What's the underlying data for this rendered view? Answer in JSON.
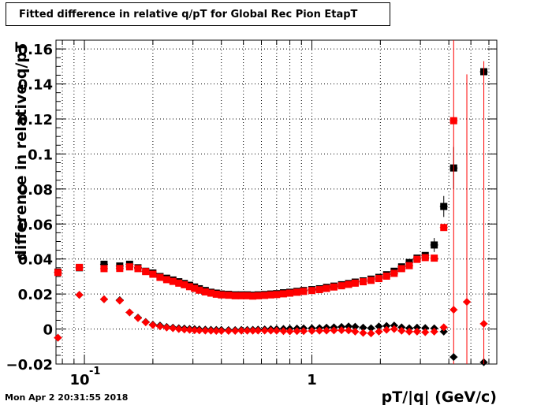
{
  "title": "Fitted difference in relative q/pT for Global Rec Pion EtapT",
  "timestamp": "Mon Apr  2 20:31:55 2018",
  "chart_data": {
    "type": "scatter",
    "title": "Fitted difference in relative q/pT for Global Rec Pion EtapT",
    "xlabel": "pT/|q| (GeV/c)",
    "ylabel": "difference in relative q/pT",
    "xscale": "log",
    "xlim": [
      0.075,
      6.5
    ],
    "ylim": [
      -0.02,
      0.165
    ],
    "grid": true,
    "colors": {
      "black": "#000000",
      "red": "#ff0000"
    },
    "x_tick_labels": [
      {
        "value": 0.1,
        "base": "10",
        "exp": "-1"
      },
      {
        "value": 1,
        "base": "1",
        "exp": ""
      }
    ],
    "y_ticks": [
      -0.02,
      0,
      0.02,
      0.04,
      0.06,
      0.08,
      0.1,
      0.12,
      0.14,
      0.16
    ],
    "y_tick_labels": [
      "−0.02",
      "0",
      "0.02",
      "0.04",
      "0.06",
      "0.08",
      "0.1",
      "0.12",
      "0.14",
      "0.16"
    ],
    "series": [
      {
        "marker": "square",
        "color": "#000000",
        "points": [
          [
            0.0765,
            0.0325
          ],
          [
            0.095,
            0.035
          ],
          [
            0.122,
            0.037
          ],
          [
            0.143,
            0.036
          ],
          [
            0.158,
            0.037
          ],
          [
            0.172,
            0.035
          ],
          [
            0.186,
            0.033
          ],
          [
            0.2,
            0.032
          ],
          [
            0.215,
            0.03
          ],
          [
            0.23,
            0.029
          ],
          [
            0.245,
            0.028
          ],
          [
            0.26,
            0.027
          ],
          [
            0.275,
            0.026
          ],
          [
            0.29,
            0.025
          ],
          [
            0.305,
            0.024
          ],
          [
            0.32,
            0.023
          ],
          [
            0.34,
            0.022
          ],
          [
            0.36,
            0.021
          ],
          [
            0.38,
            0.0205
          ],
          [
            0.4,
            0.02
          ],
          [
            0.43,
            0.0198
          ],
          [
            0.46,
            0.0195
          ],
          [
            0.49,
            0.0195
          ],
          [
            0.52,
            0.0195
          ],
          [
            0.55,
            0.0193
          ],
          [
            0.58,
            0.0195
          ],
          [
            0.62,
            0.0197
          ],
          [
            0.66,
            0.02
          ],
          [
            0.7,
            0.0202
          ],
          [
            0.75,
            0.0207
          ],
          [
            0.8,
            0.021
          ],
          [
            0.86,
            0.0215
          ],
          [
            0.92,
            0.022
          ],
          [
            1.0,
            0.0225
          ],
          [
            1.08,
            0.023
          ],
          [
            1.16,
            0.0238
          ],
          [
            1.25,
            0.0245
          ],
          [
            1.35,
            0.0253
          ],
          [
            1.45,
            0.026
          ],
          [
            1.55,
            0.0268
          ],
          [
            1.68,
            0.0275
          ],
          [
            1.82,
            0.0285
          ],
          [
            1.97,
            0.0295
          ],
          [
            2.13,
            0.031
          ],
          [
            2.3,
            0.033
          ],
          [
            2.48,
            0.0355
          ],
          [
            2.68,
            0.038
          ],
          [
            2.9,
            0.0405
          ],
          [
            3.15,
            0.042
          ],
          [
            3.45,
            0.048
          ],
          [
            3.8,
            0.07
          ],
          [
            4.2,
            0.092
          ],
          [
            5.7,
            0.147
          ]
        ],
        "errors": {
          "3.45": 0.004,
          "3.8": 0.006,
          "4.2": 0.012
        }
      },
      {
        "marker": "square",
        "color": "#ff0000",
        "points": [
          [
            0.0765,
            0.0323
          ],
          [
            0.095,
            0.0352
          ],
          [
            0.122,
            0.0345
          ],
          [
            0.143,
            0.0346
          ],
          [
            0.158,
            0.0355
          ],
          [
            0.172,
            0.0345
          ],
          [
            0.186,
            0.0328
          ],
          [
            0.2,
            0.0313
          ],
          [
            0.215,
            0.0295
          ],
          [
            0.23,
            0.0282
          ],
          [
            0.245,
            0.0272
          ],
          [
            0.26,
            0.0262
          ],
          [
            0.275,
            0.0253
          ],
          [
            0.29,
            0.0242
          ],
          [
            0.305,
            0.0232
          ],
          [
            0.32,
            0.0222
          ],
          [
            0.34,
            0.0212
          ],
          [
            0.36,
            0.0205
          ],
          [
            0.38,
            0.0199
          ],
          [
            0.4,
            0.0195
          ],
          [
            0.43,
            0.0193
          ],
          [
            0.46,
            0.019
          ],
          [
            0.49,
            0.019
          ],
          [
            0.52,
            0.019
          ],
          [
            0.55,
            0.0188
          ],
          [
            0.58,
            0.019
          ],
          [
            0.62,
            0.0192
          ],
          [
            0.66,
            0.0195
          ],
          [
            0.7,
            0.0197
          ],
          [
            0.75,
            0.0201
          ],
          [
            0.8,
            0.0205
          ],
          [
            0.86,
            0.021
          ],
          [
            0.92,
            0.0215
          ],
          [
            1.0,
            0.022
          ],
          [
            1.08,
            0.0225
          ],
          [
            1.16,
            0.0232
          ],
          [
            1.25,
            0.024
          ],
          [
            1.35,
            0.0247
          ],
          [
            1.45,
            0.0255
          ],
          [
            1.55,
            0.0262
          ],
          [
            1.68,
            0.027
          ],
          [
            1.82,
            0.0278
          ],
          [
            1.97,
            0.0288
          ],
          [
            2.13,
            0.0302
          ],
          [
            2.3,
            0.0318
          ],
          [
            2.48,
            0.0345
          ],
          [
            2.68,
            0.0362
          ],
          [
            2.9,
            0.0398
          ],
          [
            3.15,
            0.0408
          ],
          [
            3.45,
            0.0405
          ],
          [
            3.8,
            0.058
          ],
          [
            4.2,
            0.119
          ]
        ],
        "errors": {
          "4.2": 0.2
        }
      },
      {
        "marker": "diamond",
        "color": "#000000",
        "points": [
          [
            0.0765,
            -0.005
          ],
          [
            0.095,
            0.0195
          ],
          [
            0.122,
            0.017
          ],
          [
            0.143,
            0.0165
          ],
          [
            0.158,
            0.0095
          ],
          [
            0.172,
            0.0065
          ],
          [
            0.186,
            0.004
          ],
          [
            0.2,
            0.0025
          ],
          [
            0.215,
            0.002
          ],
          [
            0.23,
            0.0012
          ],
          [
            0.245,
            0.0008
          ],
          [
            0.26,
            0.0005
          ],
          [
            0.275,
            0.0003
          ],
          [
            0.29,
            0.0001
          ],
          [
            0.305,
            0
          ],
          [
            0.32,
            -0.0002
          ],
          [
            0.34,
            -0.0003
          ],
          [
            0.36,
            -0.0004
          ],
          [
            0.38,
            -0.0005
          ],
          [
            0.4,
            -0.0005
          ],
          [
            0.43,
            -0.0006
          ],
          [
            0.46,
            -0.0006
          ],
          [
            0.49,
            -0.0005
          ],
          [
            0.52,
            -0.0005
          ],
          [
            0.55,
            -0.0004
          ],
          [
            0.58,
            -0.0003
          ],
          [
            0.62,
            -0.0002
          ],
          [
            0.66,
            -0.0001
          ],
          [
            0.7,
            0
          ],
          [
            0.75,
            0.0001
          ],
          [
            0.8,
            0.0002
          ],
          [
            0.86,
            0.0003
          ],
          [
            0.92,
            0.0004
          ],
          [
            1.0,
            0.0005
          ],
          [
            1.08,
            0.0006
          ],
          [
            1.16,
            0.0008
          ],
          [
            1.25,
            0.001
          ],
          [
            1.35,
            0.0012
          ],
          [
            1.45,
            0.0015
          ],
          [
            1.55,
            0.0013
          ],
          [
            1.68,
            0.0008
          ],
          [
            1.82,
            0.0005
          ],
          [
            1.97,
            0.0015
          ],
          [
            2.13,
            0.0018
          ],
          [
            2.3,
            0.002
          ],
          [
            2.48,
            0.001
          ],
          [
            2.68,
            0.0005
          ],
          [
            2.9,
            0.0008
          ],
          [
            3.15,
            0.0006
          ],
          [
            3.45,
            0.0004
          ],
          [
            3.8,
            -0.0015
          ],
          [
            4.2,
            -0.016
          ],
          [
            5.7,
            -0.019
          ]
        ],
        "errors": {}
      },
      {
        "marker": "diamond",
        "color": "#ff0000",
        "points": [
          [
            0.0765,
            -0.005
          ],
          [
            0.095,
            0.0195
          ],
          [
            0.122,
            0.017
          ],
          [
            0.143,
            0.0162
          ],
          [
            0.158,
            0.0095
          ],
          [
            0.172,
            0.0062
          ],
          [
            0.186,
            0.0038
          ],
          [
            0.2,
            0.0022
          ],
          [
            0.215,
            0.0015
          ],
          [
            0.23,
            0.0008
          ],
          [
            0.245,
            0.0004
          ],
          [
            0.26,
            0
          ],
          [
            0.275,
            -0.0003
          ],
          [
            0.29,
            -0.0005
          ],
          [
            0.305,
            -0.0007
          ],
          [
            0.32,
            -0.0008
          ],
          [
            0.34,
            -0.0009
          ],
          [
            0.36,
            -0.001
          ],
          [
            0.38,
            -0.0011
          ],
          [
            0.4,
            -0.0011
          ],
          [
            0.43,
            -0.0011
          ],
          [
            0.46,
            -0.0011
          ],
          [
            0.49,
            -0.001
          ],
          [
            0.52,
            -0.001
          ],
          [
            0.55,
            -0.001
          ],
          [
            0.58,
            -0.0009
          ],
          [
            0.62,
            -0.0009
          ],
          [
            0.66,
            -0.0009
          ],
          [
            0.7,
            -0.001
          ],
          [
            0.75,
            -0.0012
          ],
          [
            0.8,
            -0.0013
          ],
          [
            0.86,
            -0.0012
          ],
          [
            0.92,
            -0.0012
          ],
          [
            1.0,
            -0.0011
          ],
          [
            1.08,
            -0.001
          ],
          [
            1.16,
            -0.0009
          ],
          [
            1.25,
            -0.0008
          ],
          [
            1.35,
            -0.0007
          ],
          [
            1.45,
            -0.0008
          ],
          [
            1.55,
            -0.0015
          ],
          [
            1.68,
            -0.0022
          ],
          [
            1.82,
            -0.0025
          ],
          [
            1.97,
            -0.0015
          ],
          [
            2.13,
            -0.0005
          ],
          [
            2.3,
            0
          ],
          [
            2.48,
            -0.001
          ],
          [
            2.68,
            -0.0015
          ],
          [
            2.9,
            -0.0015
          ],
          [
            3.15,
            -0.0018
          ],
          [
            3.45,
            -0.0015
          ],
          [
            3.8,
            0.001
          ],
          [
            4.2,
            0.011
          ],
          [
            4.8,
            0.0155
          ],
          [
            5.7,
            0.003
          ]
        ],
        "errors": {
          "4.8": 0.13,
          "5.7": 0.15
        }
      }
    ]
  }
}
